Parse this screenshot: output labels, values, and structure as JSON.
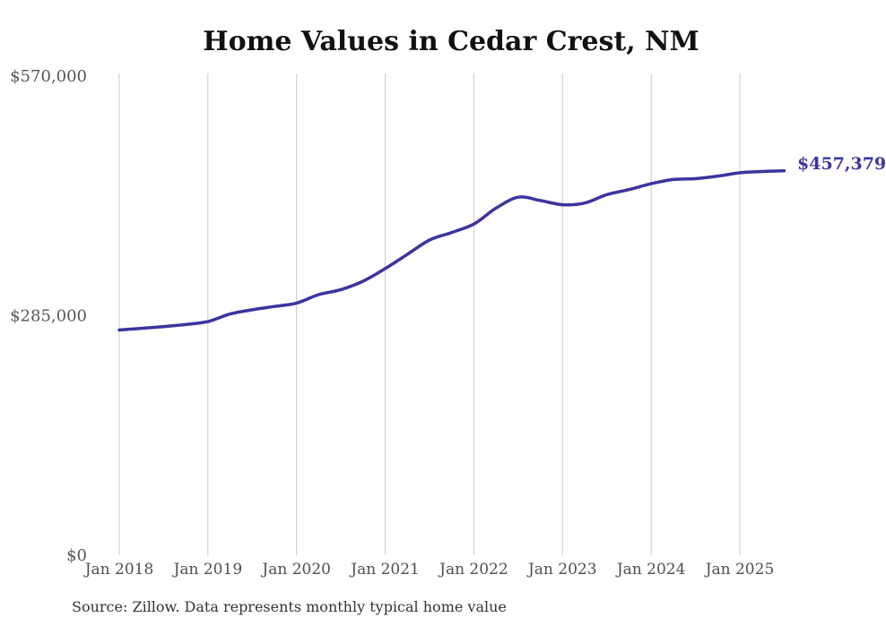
{
  "page": {
    "background": "#ffffff"
  },
  "chart_data": {
    "type": "line",
    "title": "Home Values in Cedar Crest, NM",
    "source_note": "Source: Zillow. Data represents monthly typical home value",
    "end_label": "$457,379",
    "final_value": 457379,
    "legend": "none",
    "grid": "vertical-only",
    "colors": {
      "line": "#3a359e",
      "end_label": "#3a359e",
      "gridline": "#c9c9c9",
      "y_tick_label": "#575757",
      "x_tick_label": "#4f4f4f",
      "title": "#111111",
      "source": "#333333"
    },
    "ylim": [
      0,
      570000
    ],
    "y_ticks": [
      {
        "label": "$570,000",
        "value": 570000
      },
      {
        "label": "$285,000",
        "value": 285000
      },
      {
        "label": "$0",
        "value": 0
      }
    ],
    "x_ticks": [
      {
        "label": "Jan 2018",
        "m": 0
      },
      {
        "label": "Jan 2019",
        "m": 12
      },
      {
        "label": "Jan 2020",
        "m": 24
      },
      {
        "label": "Jan 2021",
        "m": 36
      },
      {
        "label": "Jan 2022",
        "m": 48
      },
      {
        "label": "Jan 2023",
        "m": 60
      },
      {
        "label": "Jan 2024",
        "m": 72
      },
      {
        "label": "Jan 2025",
        "m": 84
      }
    ],
    "series": [
      {
        "name": "Monthly typical home value",
        "points": [
          {
            "m": 0,
            "v": 268000
          },
          {
            "m": 3,
            "v": 270000
          },
          {
            "m": 6,
            "v": 272000
          },
          {
            "m": 9,
            "v": 274500
          },
          {
            "m": 12,
            "v": 278000
          },
          {
            "m": 15,
            "v": 287000
          },
          {
            "m": 18,
            "v": 292000
          },
          {
            "m": 21,
            "v": 296000
          },
          {
            "m": 24,
            "v": 300000
          },
          {
            "m": 27,
            "v": 310000
          },
          {
            "m": 30,
            "v": 316000
          },
          {
            "m": 33,
            "v": 326000
          },
          {
            "m": 36,
            "v": 341000
          },
          {
            "m": 39,
            "v": 358000
          },
          {
            "m": 42,
            "v": 375000
          },
          {
            "m": 45,
            "v": 384000
          },
          {
            "m": 48,
            "v": 394000
          },
          {
            "m": 51,
            "v": 413000
          },
          {
            "m": 54,
            "v": 426000
          },
          {
            "m": 57,
            "v": 422000
          },
          {
            "m": 60,
            "v": 417000
          },
          {
            "m": 63,
            "v": 419000
          },
          {
            "m": 66,
            "v": 429000
          },
          {
            "m": 69,
            "v": 435000
          },
          {
            "m": 72,
            "v": 442000
          },
          {
            "m": 75,
            "v": 447000
          },
          {
            "m": 78,
            "v": 448000
          },
          {
            "m": 81,
            "v": 451000
          },
          {
            "m": 84,
            "v": 455000
          },
          {
            "m": 87,
            "v": 456500
          },
          {
            "m": 90,
            "v": 457379
          }
        ]
      }
    ]
  }
}
